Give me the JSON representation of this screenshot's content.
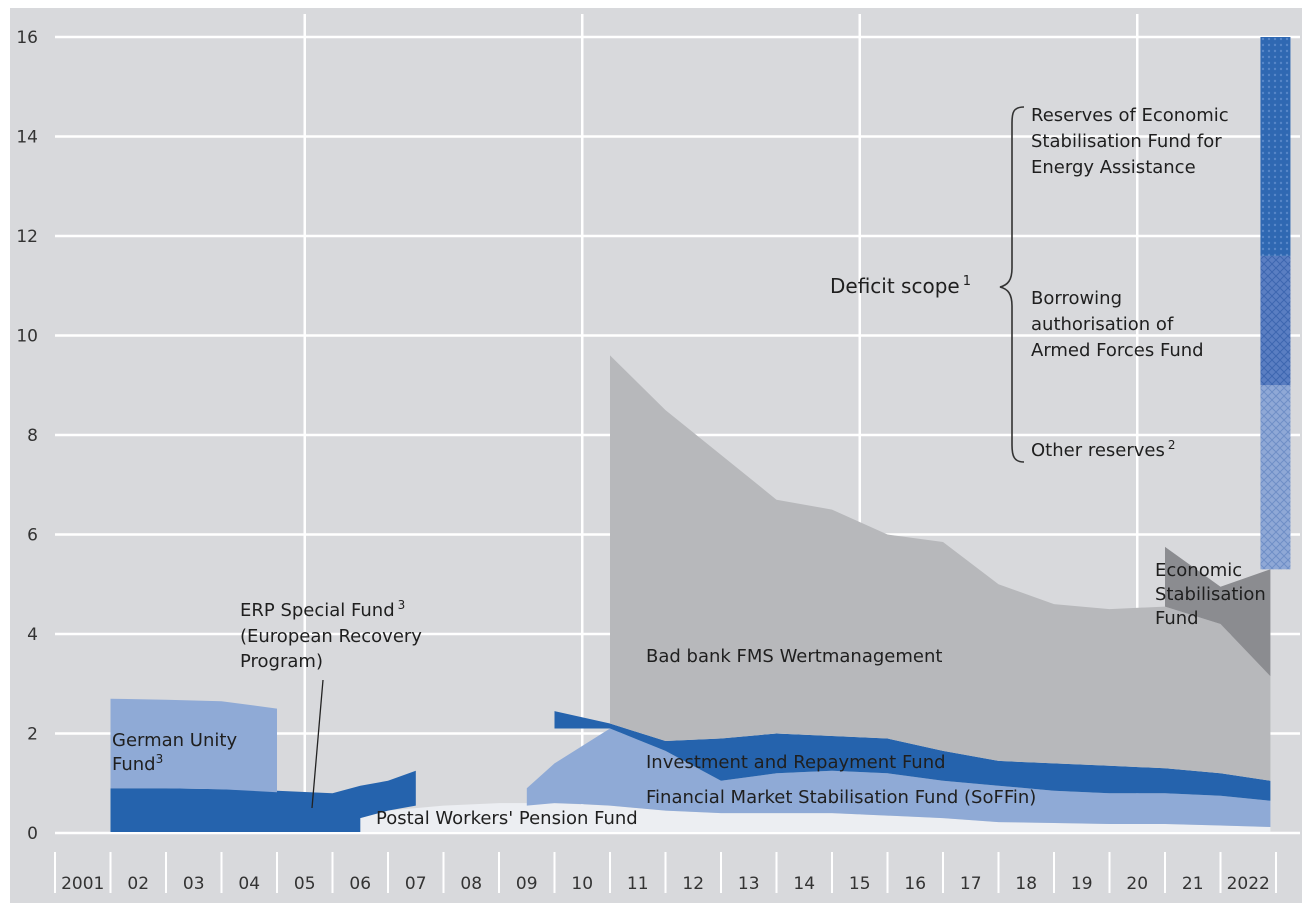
{
  "chart_data": {
    "type": "area",
    "title": "",
    "xlabel": "",
    "ylabel": "",
    "ylim": [
      0,
      16
    ],
    "yticks": [
      "0",
      "2",
      "4",
      "6",
      "8",
      "10",
      "12",
      "14",
      "16"
    ],
    "categories": [
      "2001",
      "02",
      "03",
      "04",
      "05",
      "06",
      "07",
      "08",
      "09",
      "10",
      "11",
      "12",
      "13",
      "14",
      "15",
      "16",
      "17",
      "18",
      "19",
      "20",
      "21",
      "2022"
    ],
    "series": [
      {
        "name": "Postal Workers' Pension Fund",
        "color": "#eceef2",
        "x": [
          5.5,
          6,
          7,
          8,
          9,
          10,
          11,
          12,
          13,
          14,
          15,
          16,
          17,
          18,
          19,
          20,
          21,
          21.9
        ],
        "lower": [
          0,
          0,
          0,
          0,
          0,
          0,
          0,
          0,
          0,
          0,
          0,
          0,
          0,
          0,
          0,
          0,
          0,
          0
        ],
        "upper": [
          0.3,
          0.45,
          0.55,
          0.6,
          0.6,
          0.55,
          0.45,
          0.4,
          0.4,
          0.4,
          0.35,
          0.3,
          0.22,
          0.2,
          0.18,
          0.18,
          0.15,
          0.12
        ]
      },
      {
        "name": "ERP Special Fund",
        "color": "#2563ad",
        "x": [
          1,
          2,
          3,
          4,
          5,
          5.5,
          5.5,
          6,
          6.5,
          6.5,
          6,
          5.5,
          5,
          4,
          3,
          2,
          1
        ],
        "y": [
          0,
          0,
          0,
          0,
          0,
          0,
          0.3,
          0.45,
          0.55,
          1.25,
          1.05,
          0.95,
          0.8,
          0.85,
          0.88,
          0.9,
          0.9
        ]
      },
      {
        "name": "German Unity Fund",
        "color": "#8faad6",
        "x": [
          1,
          2,
          3,
          4,
          4,
          3,
          2,
          1
        ],
        "y": [
          0.9,
          0.9,
          0.88,
          0.82,
          2.5,
          2.65,
          2.68,
          2.7
        ]
      },
      {
        "name": "Financial Market Stabilisation Fund (SoFFin)",
        "color": "#8faad6",
        "x": [
          8.5,
          8.5,
          9,
          10,
          11,
          12,
          13,
          14,
          15,
          16,
          17,
          18,
          19,
          20,
          21,
          21.9,
          21.9,
          21,
          20,
          19,
          18,
          17,
          16,
          15,
          14,
          13,
          12,
          11,
          10,
          9.5,
          9
        ],
        "y": [
          0.55,
          0.9,
          1.4,
          2.1,
          1.65,
          1.05,
          1.2,
          1.25,
          1.2,
          1.05,
          0.95,
          0.85,
          0.8,
          0.8,
          0.75,
          0.65,
          0.12,
          0.15,
          0.18,
          0.18,
          0.2,
          0.22,
          0.3,
          0.35,
          0.4,
          0.4,
          0.4,
          0.45,
          0.55,
          0.58,
          0.6
        ]
      },
      {
        "name": "Investment and Repayment Fund",
        "color": "#2563ad",
        "x": [
          9,
          9,
          10,
          11,
          12,
          13,
          14,
          15,
          16,
          17,
          18,
          19,
          20,
          21,
          21.9,
          21.9,
          21,
          20,
          19,
          18,
          17,
          16,
          15,
          14,
          13,
          12,
          11,
          10
        ],
        "y": [
          2.1,
          2.45,
          2.2,
          1.85,
          1.9,
          2.0,
          1.95,
          1.9,
          1.65,
          1.45,
          1.4,
          1.35,
          1.3,
          1.2,
          1.05,
          0.65,
          0.75,
          0.8,
          0.8,
          0.85,
          0.95,
          1.05,
          1.2,
          1.25,
          1.2,
          1.05,
          1.65,
          2.1
        ]
      },
      {
        "name": "Bad bank FMS Wertmanagement",
        "color": "#b7b8bb",
        "x": [
          10,
          10,
          11,
          12,
          13,
          14,
          15,
          16,
          17,
          18,
          19,
          20,
          21,
          21.9,
          21.9,
          21,
          20,
          19,
          18,
          17,
          16,
          15,
          14,
          13,
          12,
          11
        ],
        "y": [
          2.2,
          9.6,
          8.5,
          7.6,
          6.7,
          6.5,
          6.0,
          5.85,
          5.0,
          4.6,
          4.5,
          4.55,
          4.2,
          3.15,
          1.05,
          1.2,
          1.3,
          1.35,
          1.4,
          1.45,
          1.65,
          1.9,
          1.95,
          2.0,
          1.9,
          1.85
        ]
      },
      {
        "name": "Economic Stabilisation Fund",
        "color": "#8b8c90",
        "x": [
          20,
          21,
          21.9,
          21.9,
          21,
          20
        ],
        "y": [
          5.75,
          4.95,
          5.3,
          3.15,
          4.2,
          4.55
        ]
      },
      {
        "name": "Other reserves",
        "color": "#8fa8d6",
        "x": [
          21.9
        ],
        "bottom": 5.3,
        "top": 9.0
      },
      {
        "name": "Borrowing authorisation of Armed Forces Fund",
        "color": "#5a7ec2",
        "x": [
          21.9
        ],
        "bottom": 9.0,
        "top": 11.6
      },
      {
        "name": "Reserves of Economic Stabilisation Fund for Energy Assistance",
        "color": "#2f68b2",
        "x": [
          21.9
        ],
        "bottom": 11.6,
        "top": 16.0
      }
    ],
    "labels": {
      "german_unity_l1": "German Unity",
      "german_unity_l2": "Fund",
      "german_unity_sup": "3",
      "erp_l1": "ERP Special Fund",
      "erp_sup": "3",
      "erp_l2": "(European Recovery",
      "erp_l3": "Program)",
      "postal": "Postal Workers' Pension Fund",
      "soffin": "Financial Market Stabilisation Fund (SoFFin)",
      "irf": "Investment and Repayment Fund",
      "bad_bank": "Bad bank FMS Wertmanagement",
      "esf_l1": "Economic",
      "esf_l2": "Stabilisation",
      "esf_l3": "Fund",
      "deficit": "Deficit scope",
      "deficit_sup": "1",
      "reserves_l1": "Reserves of Economic",
      "reserves_l2": "Stabilisation Fund for",
      "reserves_l3": "Energy Assistance",
      "borrowing_l1": "Borrowing",
      "borrowing_l2": "authorisation of",
      "borrowing_l3": "Armed Forces Fund",
      "other_reserves": "Other reserves",
      "other_sup": "2"
    }
  }
}
